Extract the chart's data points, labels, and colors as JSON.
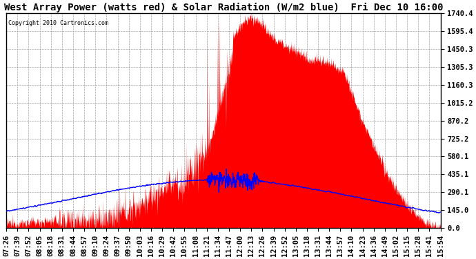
{
  "title": "West Array Power (watts red) & Solar Radiation (W/m2 blue)  Fri Dec 10 16:00",
  "copyright_text": "Copyright 2010 Cartronics.com",
  "y_ticks": [
    0.0,
    145.0,
    290.1,
    435.1,
    580.1,
    725.2,
    870.2,
    1015.2,
    1160.3,
    1305.3,
    1450.3,
    1595.4,
    1740.4
  ],
  "y_max": 1740.4,
  "background_color": "#ffffff",
  "plot_bg_color": "#ffffff",
  "grid_color": "#999999",
  "red_color": "#ff0000",
  "blue_color": "#0000ff",
  "title_fontsize": 10,
  "tick_fontsize": 7.5,
  "x_tick_labels": [
    "07:26",
    "07:39",
    "07:52",
    "08:05",
    "08:18",
    "08:31",
    "08:44",
    "08:57",
    "09:10",
    "09:24",
    "09:37",
    "09:50",
    "10:03",
    "10:16",
    "10:29",
    "10:42",
    "10:55",
    "11:08",
    "11:21",
    "11:34",
    "11:47",
    "12:00",
    "12:13",
    "12:26",
    "12:39",
    "12:52",
    "13:05",
    "13:18",
    "13:31",
    "13:44",
    "13:57",
    "14:10",
    "14:23",
    "14:36",
    "14:49",
    "15:02",
    "15:15",
    "15:28",
    "15:41",
    "15:54"
  ],
  "total_minutes": 508
}
